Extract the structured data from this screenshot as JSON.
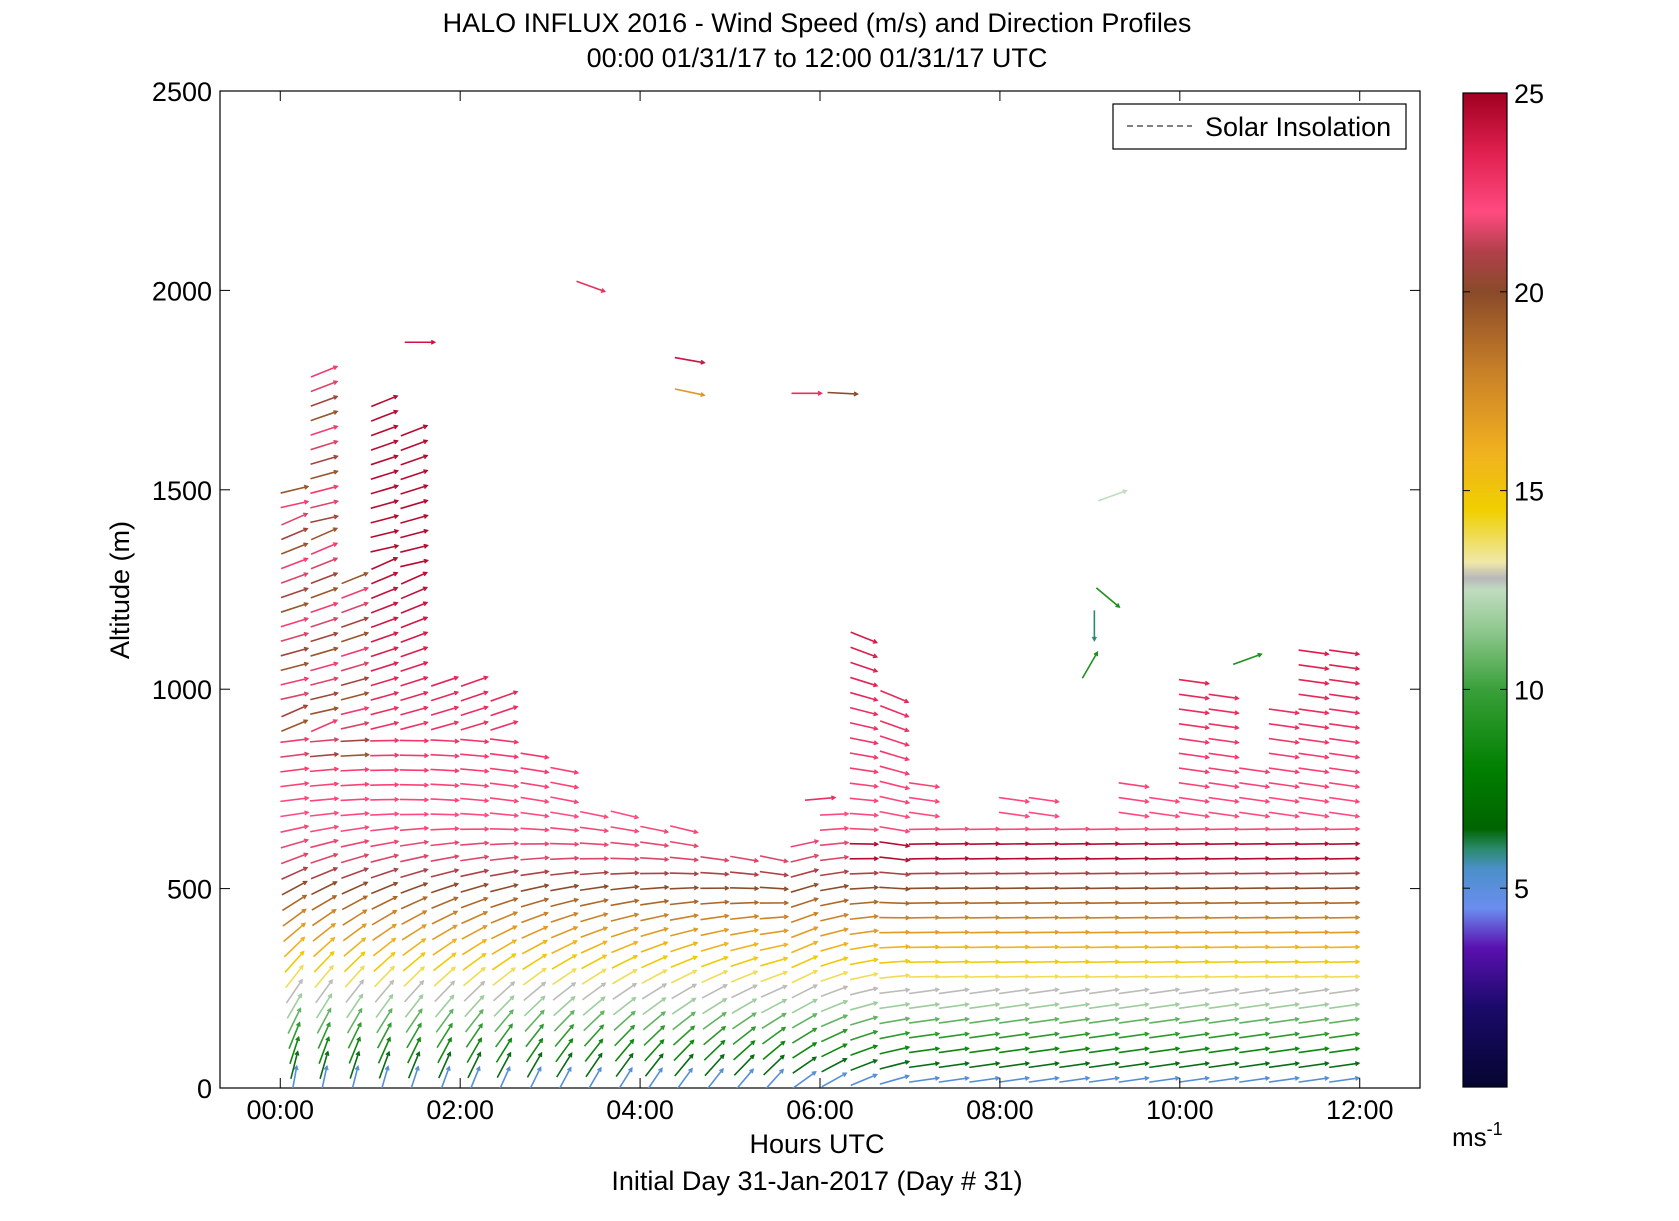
{
  "chart_data": {
    "type": "quiver",
    "title_line1": "HALO INFLUX 2016 - Wind Speed (m/s) and Direction Profiles",
    "title_line2": "00:00 01/31/17 to 12:00 01/31/17  UTC",
    "xlabel": "Hours UTC",
    "xlabel_sub": "Initial Day 31-Jan-2017 (Day # 31)",
    "ylabel": "Altitude (m)",
    "x_ticks": [
      "00:00",
      "02:00",
      "04:00",
      "06:00",
      "08:00",
      "10:00",
      "12:00"
    ],
    "y_ticks": [
      "0",
      "500",
      "1000",
      "1500",
      "2000",
      "2500"
    ],
    "xlim": [
      -0.67,
      12.67
    ],
    "ylim": [
      0,
      2500
    ],
    "legend": {
      "entry": "Solar Insolation",
      "placement": "top-right"
    },
    "colorbar": {
      "ticks": [
        "5",
        "10",
        "15",
        "20",
        "25"
      ],
      "range": [
        0,
        25
      ],
      "unit_base": "ms",
      "unit_exp": "-1",
      "colormap": [
        [
          0,
          "#050530"
        ],
        [
          2,
          "#1a0a6a"
        ],
        [
          3.5,
          "#5a10b0"
        ],
        [
          4.5,
          "#6a8ef0"
        ],
        [
          5.5,
          "#4a90c8"
        ],
        [
          6,
          "#2a8a6a"
        ],
        [
          6.5,
          "#006400"
        ],
        [
          8,
          "#008000"
        ],
        [
          10,
          "#3aa03a"
        ],
        [
          11.5,
          "#90c890"
        ],
        [
          12.5,
          "#c0dcc0"
        ],
        [
          12.8,
          "#b8b8b8"
        ],
        [
          13.2,
          "#f0e8a8"
        ],
        [
          14.5,
          "#f0d000"
        ],
        [
          16,
          "#f0b020"
        ],
        [
          18,
          "#c88028"
        ],
        [
          20,
          "#8a4a2a"
        ],
        [
          21,
          "#b0404a"
        ],
        [
          22,
          "#ff4a80"
        ],
        [
          23.5,
          "#e02050"
        ],
        [
          25,
          "#a00020"
        ]
      ]
    },
    "profile_times": [
      0,
      0.33,
      0.67,
      1.0,
      1.33,
      1.67,
      2.0,
      2.33,
      2.67,
      3.0,
      3.33,
      3.67,
      4.0,
      4.33,
      4.67,
      5.0,
      5.33,
      5.67,
      6.0,
      6.33,
      6.67,
      7.0,
      7.33,
      7.67,
      8.0,
      8.33,
      8.67,
      9.0,
      9.33,
      9.67,
      10.0,
      10.33,
      10.67,
      11.0,
      11.33,
      11.67
    ],
    "profile_tops_m": [
      1510,
      1820,
      1300,
      1740,
      1660,
      1040,
      1030,
      1000,
      870,
      820,
      720,
      690,
      650,
      650,
      580,
      580,
      610,
      620,
      720,
      1140,
      1000,
      790,
      660,
      670,
      750,
      740,
      670,
      660,
      760,
      740,
      1050,
      990,
      800,
      980,
      1100,
      1100
    ],
    "isolated_vectors": [
      {
        "t": 3.45,
        "z": 2010,
        "speed": 23,
        "dir_deg": -20
      },
      {
        "t": 1.55,
        "z": 1870,
        "speed": 24,
        "dir_deg": 0
      },
      {
        "t": 4.55,
        "z": 1825,
        "speed": 24,
        "dir_deg": -10
      },
      {
        "t": 4.55,
        "z": 1745,
        "speed": 17,
        "dir_deg": -12
      },
      {
        "t": 5.85,
        "z": 1742,
        "speed": 23,
        "dir_deg": 0
      },
      {
        "t": 6.25,
        "z": 1742,
        "speed": 20,
        "dir_deg": -3
      },
      {
        "t": 9.25,
        "z": 1485,
        "speed": 12.5,
        "dir_deg": 20
      },
      {
        "t": 9.2,
        "z": 1230,
        "speed": 9,
        "dir_deg": -40
      },
      {
        "t": 9.05,
        "z": 1160,
        "speed": 6,
        "dir_deg": -90
      },
      {
        "t": 9.0,
        "z": 1060,
        "speed": 9,
        "dir_deg": 60
      },
      {
        "t": 10.75,
        "z": 1075,
        "speed": 9,
        "dir_deg": 20
      },
      {
        "t": 6.0,
        "z": 725,
        "speed": 23,
        "dir_deg": 5
      }
    ]
  }
}
